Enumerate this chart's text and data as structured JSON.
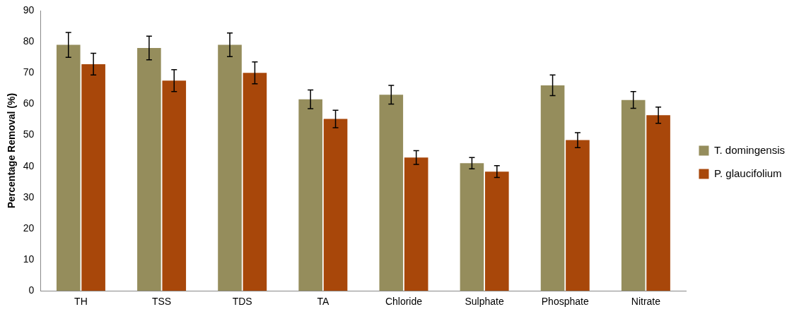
{
  "chart_data": {
    "type": "bar",
    "ylabel": "Percentage Removal (%)",
    "categories": [
      "TH",
      "TSS",
      "TDS",
      "TA",
      "Chloride",
      "Sulphate",
      "Phosphate",
      "Nitrate"
    ],
    "series": [
      {
        "name": "T. domingensis",
        "color": "#958d5c",
        "values": [
          79,
          78,
          79,
          61.5,
          63,
          41,
          66,
          61.3
        ],
        "errors": [
          4,
          3.8,
          3.8,
          3,
          3,
          1.8,
          3.3,
          2.7
        ]
      },
      {
        "name": "P. glaucifolium",
        "color": "#a8470a",
        "values": [
          72.8,
          67.5,
          70,
          55.2,
          42.8,
          38.3,
          48.4,
          56.4
        ],
        "errors": [
          3.5,
          3.5,
          3.5,
          2.8,
          2.2,
          1.9,
          2.4,
          2.6
        ]
      }
    ],
    "ylim": [
      0,
      90
    ],
    "yticks": [
      0,
      10,
      20,
      30,
      40,
      50,
      60,
      70,
      80,
      90
    ],
    "grid": false,
    "legend": "right"
  }
}
